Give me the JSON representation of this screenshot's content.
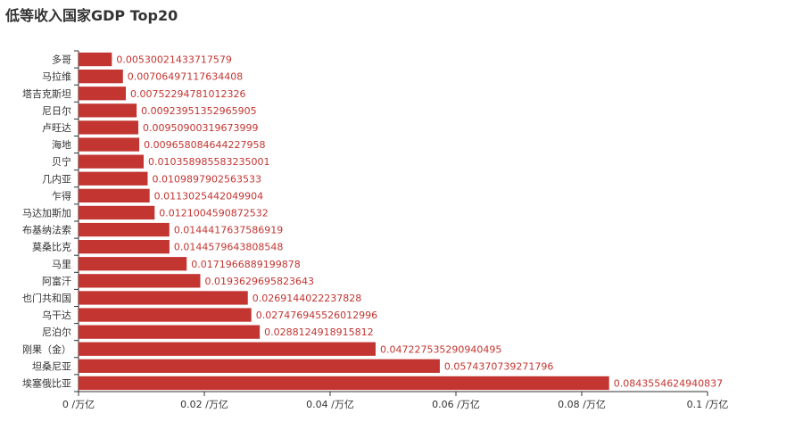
{
  "title": "低等收入国家GDP Top20",
  "colors": {
    "bar": "#c23531",
    "axis": "#333333",
    "label": "#c23531",
    "text": "#333333"
  },
  "chart_data": {
    "type": "bar",
    "orientation": "horizontal",
    "title": "低等收入国家GDP Top20",
    "categories": [
      "多哥",
      "马拉维",
      "塔吉克斯坦",
      "尼日尔",
      "卢旺达",
      "海地",
      "贝宁",
      "几内亚",
      "乍得",
      "马达加斯加",
      "布基纳法索",
      "莫桑比克",
      "马里",
      "阿富汗",
      "也门共和国",
      "乌干达",
      "尼泊尔",
      "刚果（金）",
      "坦桑尼亚",
      "埃塞俄比亚"
    ],
    "values": [
      0.00530021433717579,
      0.00706497117634408,
      0.00752294781012326,
      0.00923951352965905,
      0.00950900319673999,
      0.00965808464422795,
      0.010358985583235001,
      0.0109897902563533,
      0.0113025442049904,
      0.0121004590872532,
      0.0144417637586919,
      0.0144579643808548,
      0.0171966889199878,
      0.0193629695823643,
      0.0269144022237828,
      0.027476945526012996,
      0.0288124918915812,
      0.047227535290940495,
      0.0574370739271796,
      0.0843554624940837
    ],
    "value_labels": [
      "0.00530021433717579",
      "0.00706497117634408",
      "0.00752294781012326",
      "0.00923951352965905",
      "0.00950900319673999",
      "0.009658084644227958",
      "0.010358985583235001",
      "0.0109897902563533",
      "0.0113025442049904",
      "0.0121004590872532",
      "0.0144417637586919",
      "0.0144579643808548",
      "0.0171966889199878",
      "0.0193629695823643",
      "0.0269144022237828",
      "0.027476945526012996",
      "0.0288124918915812",
      "0.047227535290940495",
      "0.0574370739271796",
      "0.0843554624940837"
    ],
    "xlim": [
      0,
      0.1
    ],
    "xticks": [
      0,
      0.02,
      0.04,
      0.06,
      0.08,
      0.1
    ],
    "xtick_labels": [
      "0 /万亿",
      "0.02 /万亿",
      "0.04 /万亿",
      "0.06 /万亿",
      "0.08 /万亿",
      "0.1 /万亿"
    ],
    "grid": false,
    "legend": "none"
  }
}
